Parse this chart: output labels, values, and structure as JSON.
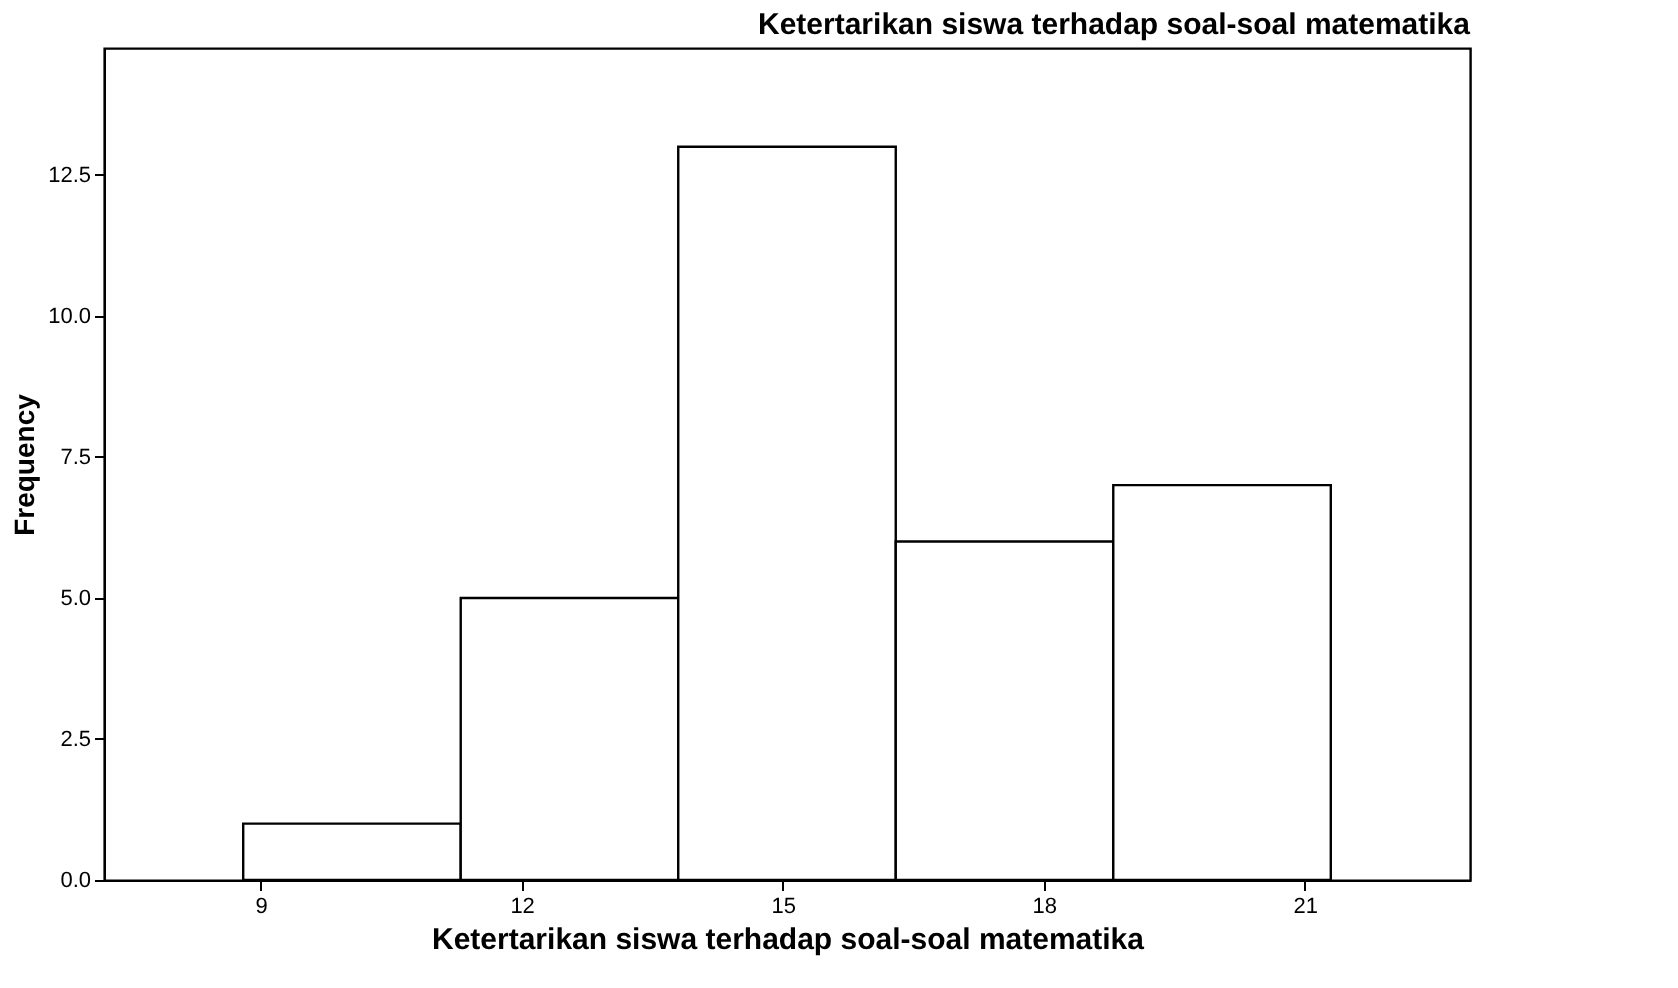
{
  "chart_data": {
    "type": "histogram",
    "title": "Ketertarikan siswa terhadap soal-soal matematika",
    "xlabel": "Ketertarikan siswa terhadap soal-soal matematika",
    "ylabel": "Frequency",
    "bins": [
      8.8,
      11.3,
      13.8,
      16.3,
      18.8,
      21.3
    ],
    "values": [
      1,
      5,
      13,
      6,
      7
    ],
    "color": "#ffffff",
    "xlim": [
      7.2,
      22.9
    ],
    "xticks": [
      9,
      12,
      15,
      18,
      21
    ],
    "ylim": [
      0,
      14.75
    ],
    "yticks": [
      {
        "value": 0,
        "label": "0.0"
      },
      {
        "value": 2.5,
        "label": "2.5"
      },
      {
        "value": 5,
        "label": "5.0"
      },
      {
        "value": 7.5,
        "label": "7.5"
      },
      {
        "value": 10,
        "label": "10.0"
      },
      {
        "value": 12.5,
        "label": "12.5"
      }
    ],
    "grid": false
  }
}
